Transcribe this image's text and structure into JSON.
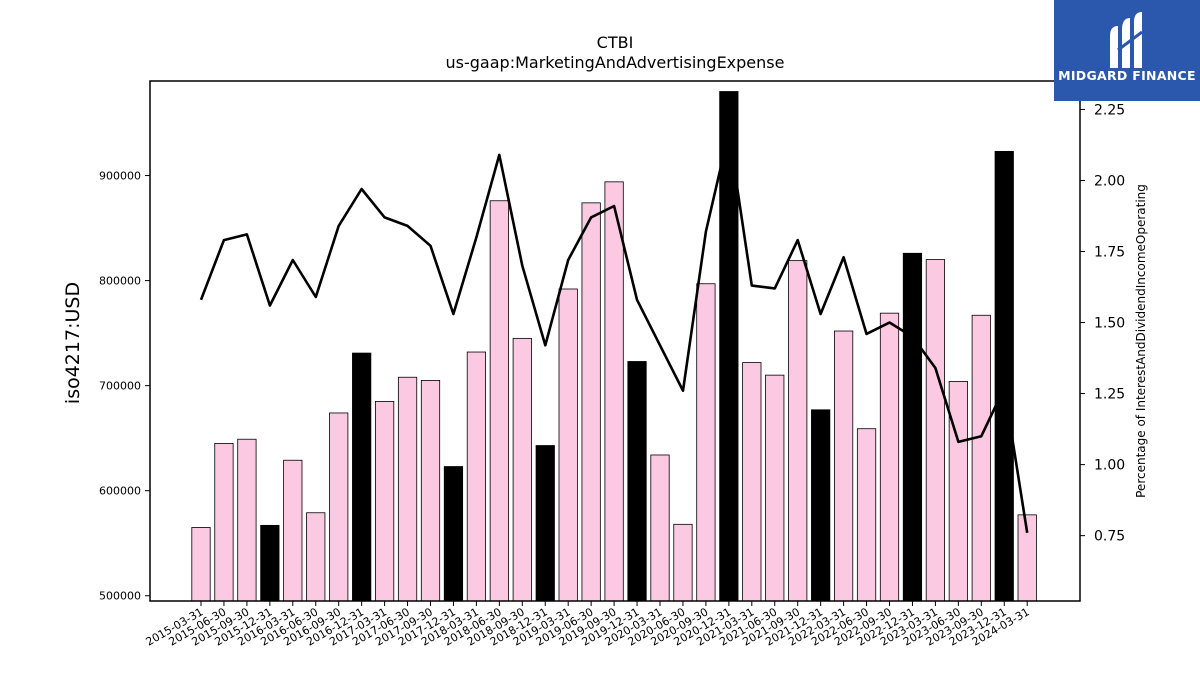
{
  "brand": {
    "name": "MIDGARD FINANCE",
    "icon": "midgard-logo-icon",
    "color": "#2b58ad"
  },
  "chart_data": {
    "type": "bar",
    "title": "CTBI",
    "subtitle": "us-gaap:MarketingAndAdvertisingExpense",
    "ylabel": "iso4217:USD",
    "y2label": "Percentage of InterestAndDividendIncomeOperating",
    "ylim": [
      495000,
      990000
    ],
    "y2lim": [
      0.52,
      2.35
    ],
    "yticks": [
      "500000",
      "600000",
      "700000",
      "800000",
      "900000"
    ],
    "y2ticks": [
      "0.75",
      "1.00",
      "1.25",
      "1.50",
      "1.75",
      "2.00",
      "2.25"
    ],
    "grid": false,
    "legend": "none",
    "bar_colors": {
      "default": "#fbc9e2",
      "year_end": "#000000"
    },
    "categories": [
      "2015-03-31",
      "2015-06-30",
      "2015-09-30",
      "2015-12-31",
      "2016-03-31",
      "2016-06-30",
      "2016-09-30",
      "2016-12-31",
      "2017-03-31",
      "2017-06-30",
      "2017-09-30",
      "2017-12-31",
      "2018-03-31",
      "2018-06-30",
      "2018-09-30",
      "2018-12-31",
      "2019-03-31",
      "2019-06-30",
      "2019-09-30",
      "2019-12-31",
      "2020-03-31",
      "2020-06-30",
      "2020-09-30",
      "2020-12-31",
      "2021-03-31",
      "2021-06-30",
      "2021-09-30",
      "2021-12-31",
      "2022-03-31",
      "2022-06-30",
      "2022-09-30",
      "2022-12-31",
      "2023-03-31",
      "2023-06-30",
      "2023-09-30",
      "2023-12-31",
      "2024-03-31"
    ],
    "series": [
      {
        "type": "bar",
        "values": [
          565000,
          645000,
          649000,
          567000,
          629000,
          579000,
          674000,
          731000,
          685000,
          708000,
          705000,
          623000,
          732000,
          876000,
          745000,
          643000,
          792000,
          874000,
          894000,
          723000,
          634000,
          568000,
          797000,
          980000,
          722000,
          710000,
          819000,
          677000,
          752000,
          659000,
          769000,
          826000,
          820000,
          704000,
          767000,
          923000,
          577000
        ],
        "highlight": [
          false,
          false,
          false,
          true,
          false,
          false,
          false,
          true,
          false,
          false,
          false,
          true,
          false,
          false,
          false,
          true,
          false,
          false,
          false,
          true,
          false,
          false,
          false,
          true,
          false,
          false,
          false,
          true,
          false,
          false,
          false,
          true,
          false,
          false,
          false,
          true,
          false
        ]
      },
      {
        "type": "line",
        "axis": "right",
        "color": "#000000",
        "values": [
          1.58,
          1.79,
          1.81,
          1.56,
          1.72,
          1.59,
          1.84,
          1.97,
          1.87,
          1.84,
          1.77,
          1.53,
          1.8,
          2.09,
          1.7,
          1.42,
          1.72,
          1.87,
          1.91,
          1.58,
          1.42,
          1.26,
          1.82,
          2.17,
          1.63,
          1.62,
          1.79,
          1.53,
          1.73,
          1.46,
          1.5,
          1.45,
          1.34,
          1.08,
          1.1,
          1.27,
          0.76
        ]
      }
    ]
  }
}
